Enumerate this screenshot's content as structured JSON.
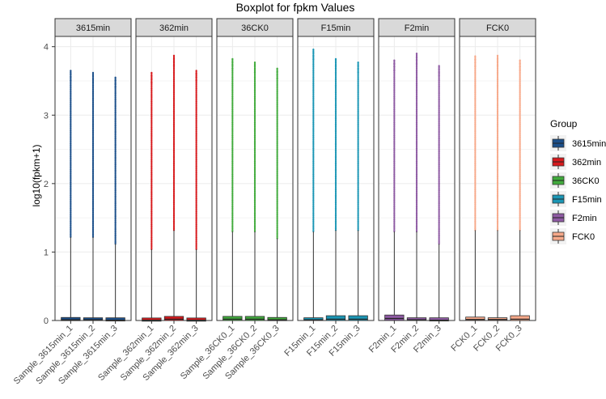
{
  "chart_data": {
    "type": "boxplot",
    "title": "Boxplot for fpkm Values",
    "xlabel": "",
    "ylabel": "log10(fpkm+1)",
    "ylim": [
      0,
      4.15
    ],
    "yticks": [
      0,
      1,
      2,
      3,
      4
    ],
    "grid": true,
    "legend": {
      "title": "Group",
      "position": "right",
      "entries": [
        "3615min",
        "362min",
        "36CK0",
        "F15min",
        "F2min",
        "FCK0"
      ]
    },
    "colors": {
      "3615min": "#1b4f8a",
      "362min": "#d7191c",
      "36CK0": "#41ab3c",
      "F15min": "#1a96b5",
      "F2min": "#8e5aa3",
      "FCK0": "#f7a98a"
    },
    "panels": [
      {
        "label": "3615min",
        "samples": [
          {
            "name": "Sample_3615min_1",
            "q1": 0.0,
            "median": 0.01,
            "q3": 0.03,
            "whisker_low": 0,
            "whisker_high": 1.22,
            "outlier_max": 3.65
          },
          {
            "name": "Sample_3615min_2",
            "q1": 0.0,
            "median": 0.01,
            "q3": 0.04,
            "whisker_low": 0,
            "whisker_high": 1.22,
            "outlier_max": 3.62
          },
          {
            "name": "Sample_3615min_3",
            "q1": 0.0,
            "median": 0.005,
            "q3": 0.02,
            "whisker_low": 0,
            "whisker_high": 1.12,
            "outlier_max": 3.55
          }
        ]
      },
      {
        "label": "362min",
        "samples": [
          {
            "name": "Sample_362min_1",
            "q1": 0.0,
            "median": 0.005,
            "q3": 0.015,
            "whisker_low": 0,
            "whisker_high": 1.04,
            "outlier_max": 3.62
          },
          {
            "name": "Sample_362min_2",
            "q1": 0.0,
            "median": 0.02,
            "q3": 0.06,
            "whisker_low": 0,
            "whisker_high": 1.32,
            "outlier_max": 3.87
          },
          {
            "name": "Sample_362min_3",
            "q1": 0.0,
            "median": 0.005,
            "q3": 0.015,
            "whisker_low": 0,
            "whisker_high": 1.04,
            "outlier_max": 3.65
          }
        ]
      },
      {
        "label": "36CK0",
        "samples": [
          {
            "name": "Sample_36CK0_1",
            "q1": 0.0,
            "median": 0.02,
            "q3": 0.06,
            "whisker_low": 0,
            "whisker_high": 1.3,
            "outlier_max": 3.82
          },
          {
            "name": "Sample_36CK0_2",
            "q1": 0.0,
            "median": 0.02,
            "q3": 0.06,
            "whisker_low": 0,
            "whisker_high": 1.3,
            "outlier_max": 3.77
          },
          {
            "name": "Sample_36CK0_3",
            "q1": 0.0,
            "median": 0.01,
            "q3": 0.03,
            "whisker_low": 0,
            "whisker_high": 1.2,
            "outlier_max": 3.68
          }
        ]
      },
      {
        "label": "F15min",
        "samples": [
          {
            "name": "F15min_1",
            "q1": 0.0,
            "median": 0.01,
            "q3": 0.04,
            "whisker_low": 0,
            "whisker_high": 1.3,
            "outlier_max": 3.96
          },
          {
            "name": "F15min_2",
            "q1": 0.0,
            "median": 0.02,
            "q3": 0.07,
            "whisker_low": 0,
            "whisker_high": 1.32,
            "outlier_max": 3.82
          },
          {
            "name": "F15min_3",
            "q1": 0.0,
            "median": 0.02,
            "q3": 0.07,
            "whisker_low": 0,
            "whisker_high": 1.32,
            "outlier_max": 3.77
          }
        ]
      },
      {
        "label": "F2min",
        "samples": [
          {
            "name": "F2min_1",
            "q1": 0.0,
            "median": 0.03,
            "q3": 0.08,
            "whisker_low": 0,
            "whisker_high": 1.3,
            "outlier_max": 3.8
          },
          {
            "name": "F2min_2",
            "q1": 0.0,
            "median": 0.01,
            "q3": 0.04,
            "whisker_low": 0,
            "whisker_high": 1.3,
            "outlier_max": 3.9
          },
          {
            "name": "F2min_3",
            "q1": 0.0,
            "median": 0.005,
            "q3": 0.02,
            "whisker_low": 0,
            "whisker_high": 1.12,
            "outlier_max": 3.72
          }
        ]
      },
      {
        "label": "FCK0",
        "samples": [
          {
            "name": "FCK0_1",
            "q1": 0.0,
            "median": 0.015,
            "q3": 0.05,
            "whisker_low": 0,
            "whisker_high": 1.32,
            "outlier_max": 3.86
          },
          {
            "name": "FCK0_2",
            "q1": 0.0,
            "median": 0.015,
            "q3": 0.04,
            "whisker_low": 0,
            "whisker_high": 1.32,
            "outlier_max": 3.87
          },
          {
            "name": "FCK0_3",
            "q1": 0.0,
            "median": 0.02,
            "q3": 0.07,
            "whisker_low": 0,
            "whisker_high": 1.32,
            "outlier_max": 3.8
          }
        ]
      }
    ]
  }
}
